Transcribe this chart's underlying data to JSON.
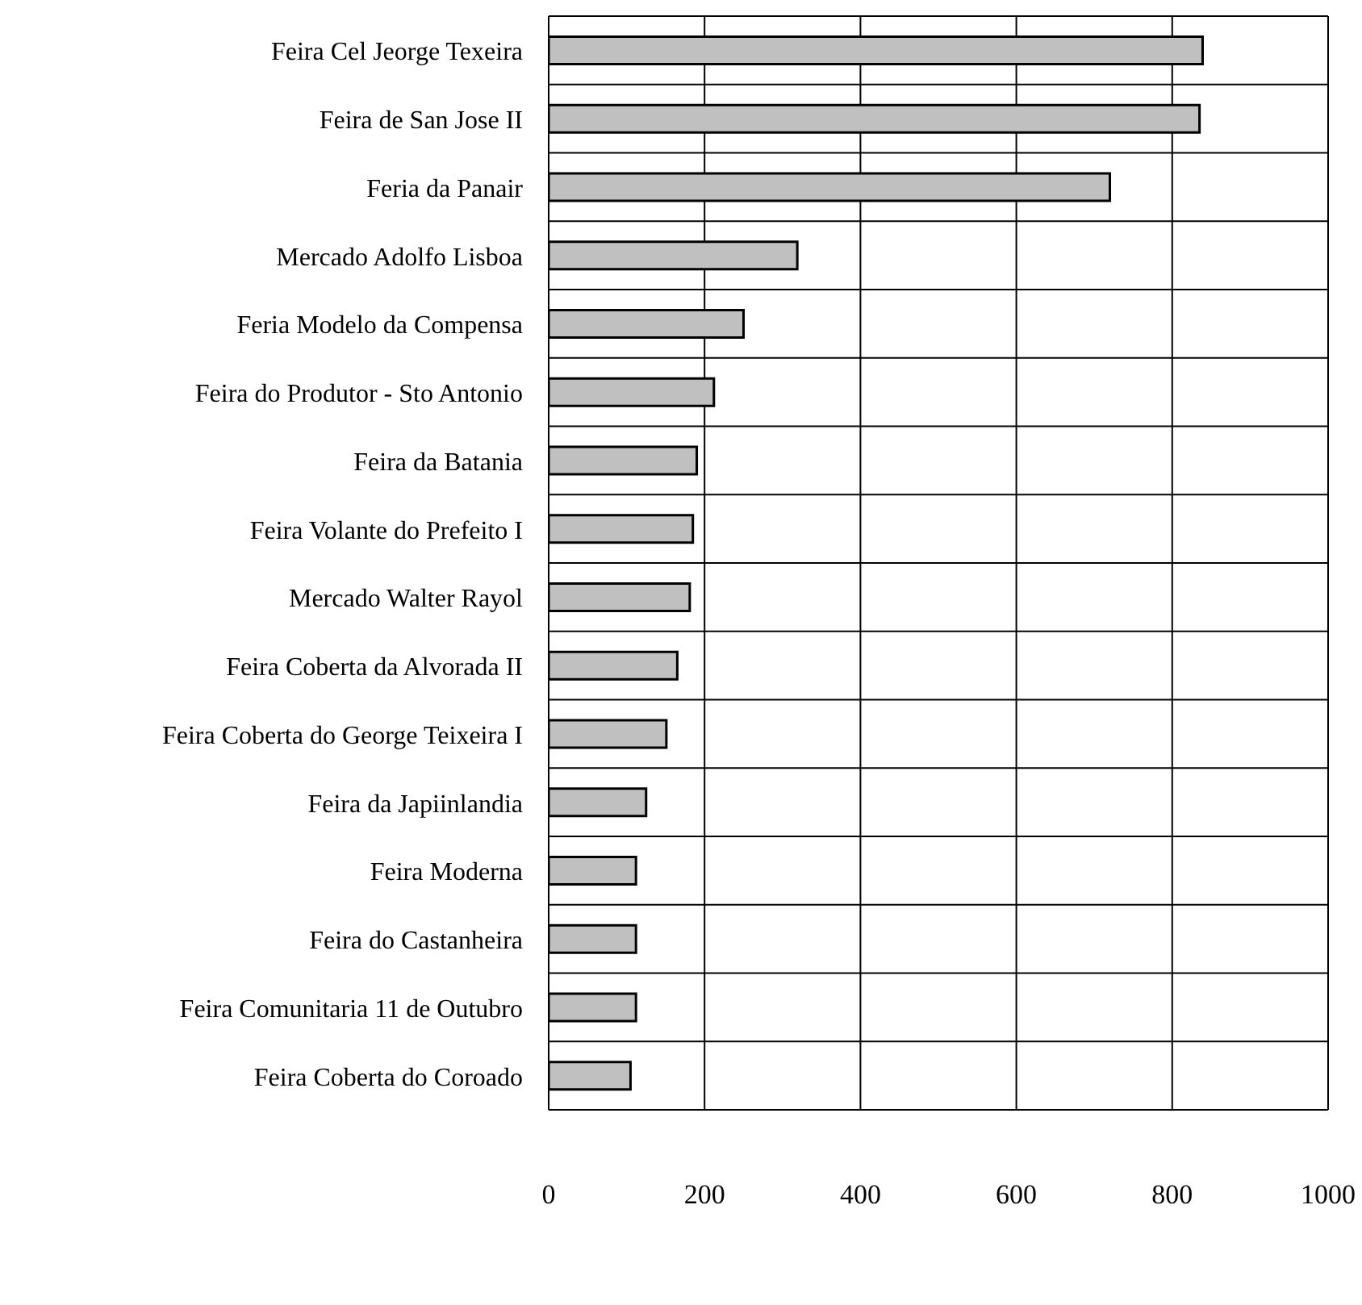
{
  "chart_data": {
    "type": "bar",
    "orientation": "horizontal",
    "categories": [
      "Feira Cel Jeorge Texeira",
      "Feira de San Jose II",
      "Feria da Panair",
      "Mercado Adolfo Lisboa",
      "Feria Modelo da Compensa",
      "Feira do Produtor - Sto Antonio",
      "Feira da Batania",
      "Feira Volante do Prefeito I",
      "Mercado Walter Rayol",
      "Feira Coberta da Alvorada II",
      "Feira Coberta do George Teixeira I",
      "Feira da Japiinlandia",
      "Feira Moderna",
      "Feira do Castanheira",
      "Feira Comunitaria 11 de Outubro",
      "Feira Coberta do Coroado"
    ],
    "values": [
      839,
      835,
      720,
      319,
      250,
      212,
      190,
      185,
      181,
      165,
      151,
      125,
      112,
      112,
      112,
      105
    ],
    "color": "#c0c0c0",
    "xlim": [
      0,
      1000
    ],
    "xticks": [
      0,
      200,
      400,
      600,
      800,
      1000
    ],
    "grid": true
  }
}
